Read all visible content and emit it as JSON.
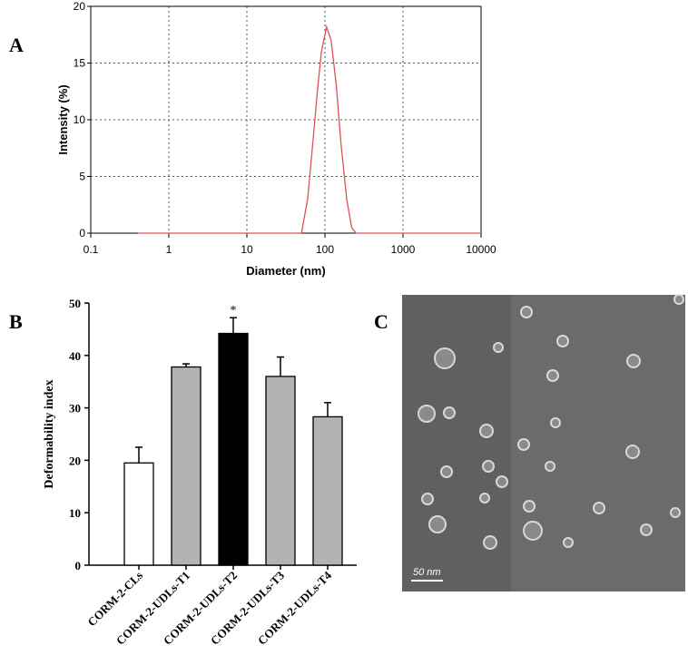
{
  "chart_data": [
    {
      "type": "line",
      "label": "A",
      "xlabel": "Diameter (nm)",
      "ylabel": "Intensity (%)",
      "x": [
        0.4,
        1,
        10,
        40,
        50,
        60,
        70,
        80,
        90,
        105,
        120,
        140,
        160,
        190,
        220,
        250,
        1000,
        10000
      ],
      "values": [
        0,
        0,
        0,
        0,
        0,
        3,
        8,
        12.5,
        16,
        18.2,
        17,
        13,
        8,
        3,
        0.5,
        0,
        0,
        0
      ],
      "color": "#e0505a",
      "log_x": true,
      "grid": true,
      "xlim": [
        0.1,
        10000
      ],
      "xticks": [
        0.1,
        1,
        10,
        100,
        1000,
        10000
      ],
      "ylim": [
        0,
        20
      ],
      "yticks": [
        0,
        5,
        10,
        15,
        20
      ]
    },
    {
      "type": "bar",
      "label": "B",
      "ylabel": "Deformability index",
      "categories": [
        "CORM-2-CLs",
        "CORM-2-UDLs-T1",
        "CORM-2-UDLs-T2",
        "CORM-2-UDLs-T3",
        "CORM-2-UDLs-T4"
      ],
      "values": [
        19.5,
        37.8,
        44.2,
        36,
        28.3
      ],
      "errors": [
        3,
        0.6,
        3,
        3.7,
        2.7
      ],
      "colors": [
        "#ffffff",
        "#b3b3b3",
        "#000000",
        "#b3b3b3",
        "#b3b3b3"
      ],
      "annotation": "*",
      "ylim": [
        0,
        50
      ],
      "yticks": [
        0,
        10,
        20,
        30,
        40,
        50
      ]
    }
  ],
  "image": {
    "label": "C",
    "scale_bar": "50 nm"
  }
}
